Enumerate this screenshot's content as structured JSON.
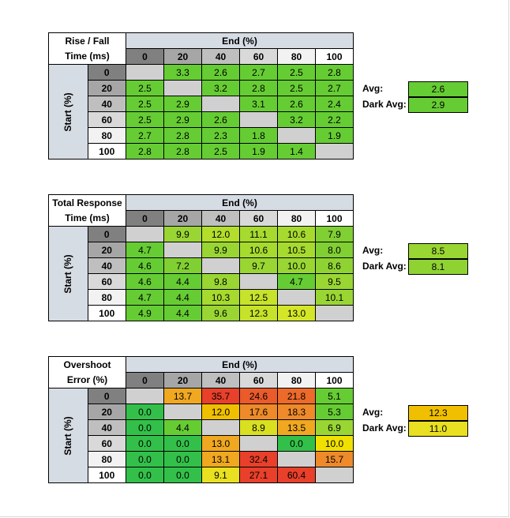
{
  "colors": {
    "header_shades": [
      "#808080",
      "#a6a6a6",
      "#bfbfbf",
      "#d9d9d9",
      "#f2f2f2",
      "#ffffff"
    ],
    "blank_cell": "#d0d0d0",
    "header_bg": "#d6dce4"
  },
  "chart_data": [
    {
      "type": "table",
      "title_line1": "Rise / Fall",
      "title_line2": "Time (ms)",
      "col_header": "End (%)",
      "row_header": "Start (%)",
      "columns": [
        "0",
        "20",
        "40",
        "60",
        "80",
        "100"
      ],
      "rows": [
        "0",
        "20",
        "40",
        "60",
        "80",
        "100"
      ],
      "values": [
        [
          "",
          "3.3",
          "2.6",
          "2.7",
          "2.5",
          "2.8"
        ],
        [
          "2.5",
          "",
          "3.2",
          "2.8",
          "2.5",
          "2.7"
        ],
        [
          "2.5",
          "2.9",
          "",
          "3.1",
          "2.6",
          "2.4"
        ],
        [
          "2.5",
          "2.9",
          "2.6",
          "",
          "3.2",
          "2.2"
        ],
        [
          "2.7",
          "2.8",
          "2.3",
          "1.8",
          "",
          "1.9"
        ],
        [
          "2.8",
          "2.8",
          "2.5",
          "1.9",
          "1.4",
          ""
        ]
      ],
      "colors": [
        [
          "#d0d0d0",
          "#66cc33",
          "#66cc33",
          "#66cc33",
          "#66cc33",
          "#66cc33"
        ],
        [
          "#66cc33",
          "#d0d0d0",
          "#66cc33",
          "#66cc33",
          "#66cc33",
          "#66cc33"
        ],
        [
          "#66cc33",
          "#66cc33",
          "#d0d0d0",
          "#66cc33",
          "#66cc33",
          "#66cc33"
        ],
        [
          "#66cc33",
          "#66cc33",
          "#66cc33",
          "#d0d0d0",
          "#66cc33",
          "#66cc33"
        ],
        [
          "#66cc33",
          "#66cc33",
          "#66cc33",
          "#66cc33",
          "#d0d0d0",
          "#66cc33"
        ],
        [
          "#66cc33",
          "#66cc33",
          "#66cc33",
          "#66cc33",
          "#66cc33",
          "#d0d0d0"
        ]
      ],
      "avg_label": "Avg:",
      "avg_value": "2.6",
      "avg_color": "#66cc33",
      "dark_avg_label": "Dark Avg:",
      "dark_avg_value": "2.9",
      "dark_avg_color": "#66cc33"
    },
    {
      "type": "table",
      "title_line1": "Total Response",
      "title_line2": "Time (ms)",
      "col_header": "End (%)",
      "row_header": "Start (%)",
      "columns": [
        "0",
        "20",
        "40",
        "60",
        "80",
        "100"
      ],
      "rows": [
        "0",
        "20",
        "40",
        "60",
        "80",
        "100"
      ],
      "values": [
        [
          "",
          "9.9",
          "12.0",
          "11.1",
          "10.6",
          "7.9"
        ],
        [
          "4.7",
          "",
          "9.9",
          "10.6",
          "10.5",
          "8.0"
        ],
        [
          "4.6",
          "7.2",
          "",
          "9.7",
          "10.0",
          "8.6"
        ],
        [
          "4.6",
          "4.4",
          "9.8",
          "",
          "4.7",
          "9.5"
        ],
        [
          "4.7",
          "4.4",
          "10.3",
          "12.5",
          "",
          "10.1"
        ],
        [
          "4.9",
          "4.4",
          "9.6",
          "12.3",
          "13.0",
          ""
        ]
      ],
      "colors": [
        [
          "#d0d0d0",
          "#99d633",
          "#b3de2b",
          "#a6da2e",
          "#a6da2e",
          "#80cf33"
        ],
        [
          "#66cc33",
          "#d0d0d0",
          "#99d633",
          "#a6da2e",
          "#a6da2e",
          "#80cf33"
        ],
        [
          "#66cc33",
          "#80cf33",
          "#d0d0d0",
          "#99d633",
          "#99d633",
          "#8fd333"
        ],
        [
          "#66cc33",
          "#66cc33",
          "#99d633",
          "#d0d0d0",
          "#66cc33",
          "#99d633"
        ],
        [
          "#66cc33",
          "#66cc33",
          "#a6da2e",
          "#c6e22a",
          "#d0d0d0",
          "#99d633"
        ],
        [
          "#66cc33",
          "#66cc33",
          "#99d633",
          "#c6e22a",
          "#d4e628",
          "#d0d0d0"
        ]
      ],
      "avg_label": "Avg:",
      "avg_value": "8.5",
      "avg_color": "#99d633",
      "dark_avg_label": "Dark Avg:",
      "dark_avg_value": "8.1",
      "dark_avg_color": "#8fd333"
    },
    {
      "type": "table",
      "title_line1": "Overshoot",
      "title_line2": "Error (%)",
      "col_header": "End (%)",
      "row_header": "Start (%)",
      "columns": [
        "0",
        "20",
        "40",
        "60",
        "80",
        "100"
      ],
      "rows": [
        "0",
        "20",
        "40",
        "60",
        "80",
        "100"
      ],
      "values": [
        [
          "",
          "13.7",
          "35.7",
          "24.6",
          "21.8",
          "5.1"
        ],
        [
          "0.0",
          "",
          "12.0",
          "17.6",
          "18.3",
          "5.3"
        ],
        [
          "0.0",
          "4.4",
          "",
          "8.9",
          "13.5",
          "6.9"
        ],
        [
          "0.0",
          "0.0",
          "13.0",
          "",
          "0.0",
          "10.0"
        ],
        [
          "0.0",
          "0.0",
          "13.1",
          "32.4",
          "",
          "15.7"
        ],
        [
          "0.0",
          "0.0",
          "9.1",
          "27.1",
          "60.4",
          ""
        ]
      ],
      "colors": [
        [
          "#d0d0d0",
          "#f0a820",
          "#e8402a",
          "#ea5a2a",
          "#ec6a2a",
          "#66cc33"
        ],
        [
          "#33c04a",
          "#d0d0d0",
          "#f0c000",
          "#ee8a2a",
          "#ee8a2a",
          "#66cc33"
        ],
        [
          "#33c04a",
          "#66cc33",
          "#d0d0d0",
          "#d9e020",
          "#f0a820",
          "#99d633"
        ],
        [
          "#33c04a",
          "#33c04a",
          "#f0a820",
          "#d0d0d0",
          "#33c04a",
          "#f0e000"
        ],
        [
          "#33c04a",
          "#33c04a",
          "#f0a820",
          "#e8402a",
          "#d0d0d0",
          "#ee8a2a"
        ],
        [
          "#33c04a",
          "#33c04a",
          "#e8e020",
          "#e8402a",
          "#e8402a",
          "#d0d0d0"
        ]
      ],
      "avg_label": "Avg:",
      "avg_value": "12.3",
      "avg_color": "#f0c000",
      "dark_avg_label": "Dark Avg:",
      "dark_avg_value": "11.0",
      "dark_avg_color": "#e8e020"
    }
  ]
}
